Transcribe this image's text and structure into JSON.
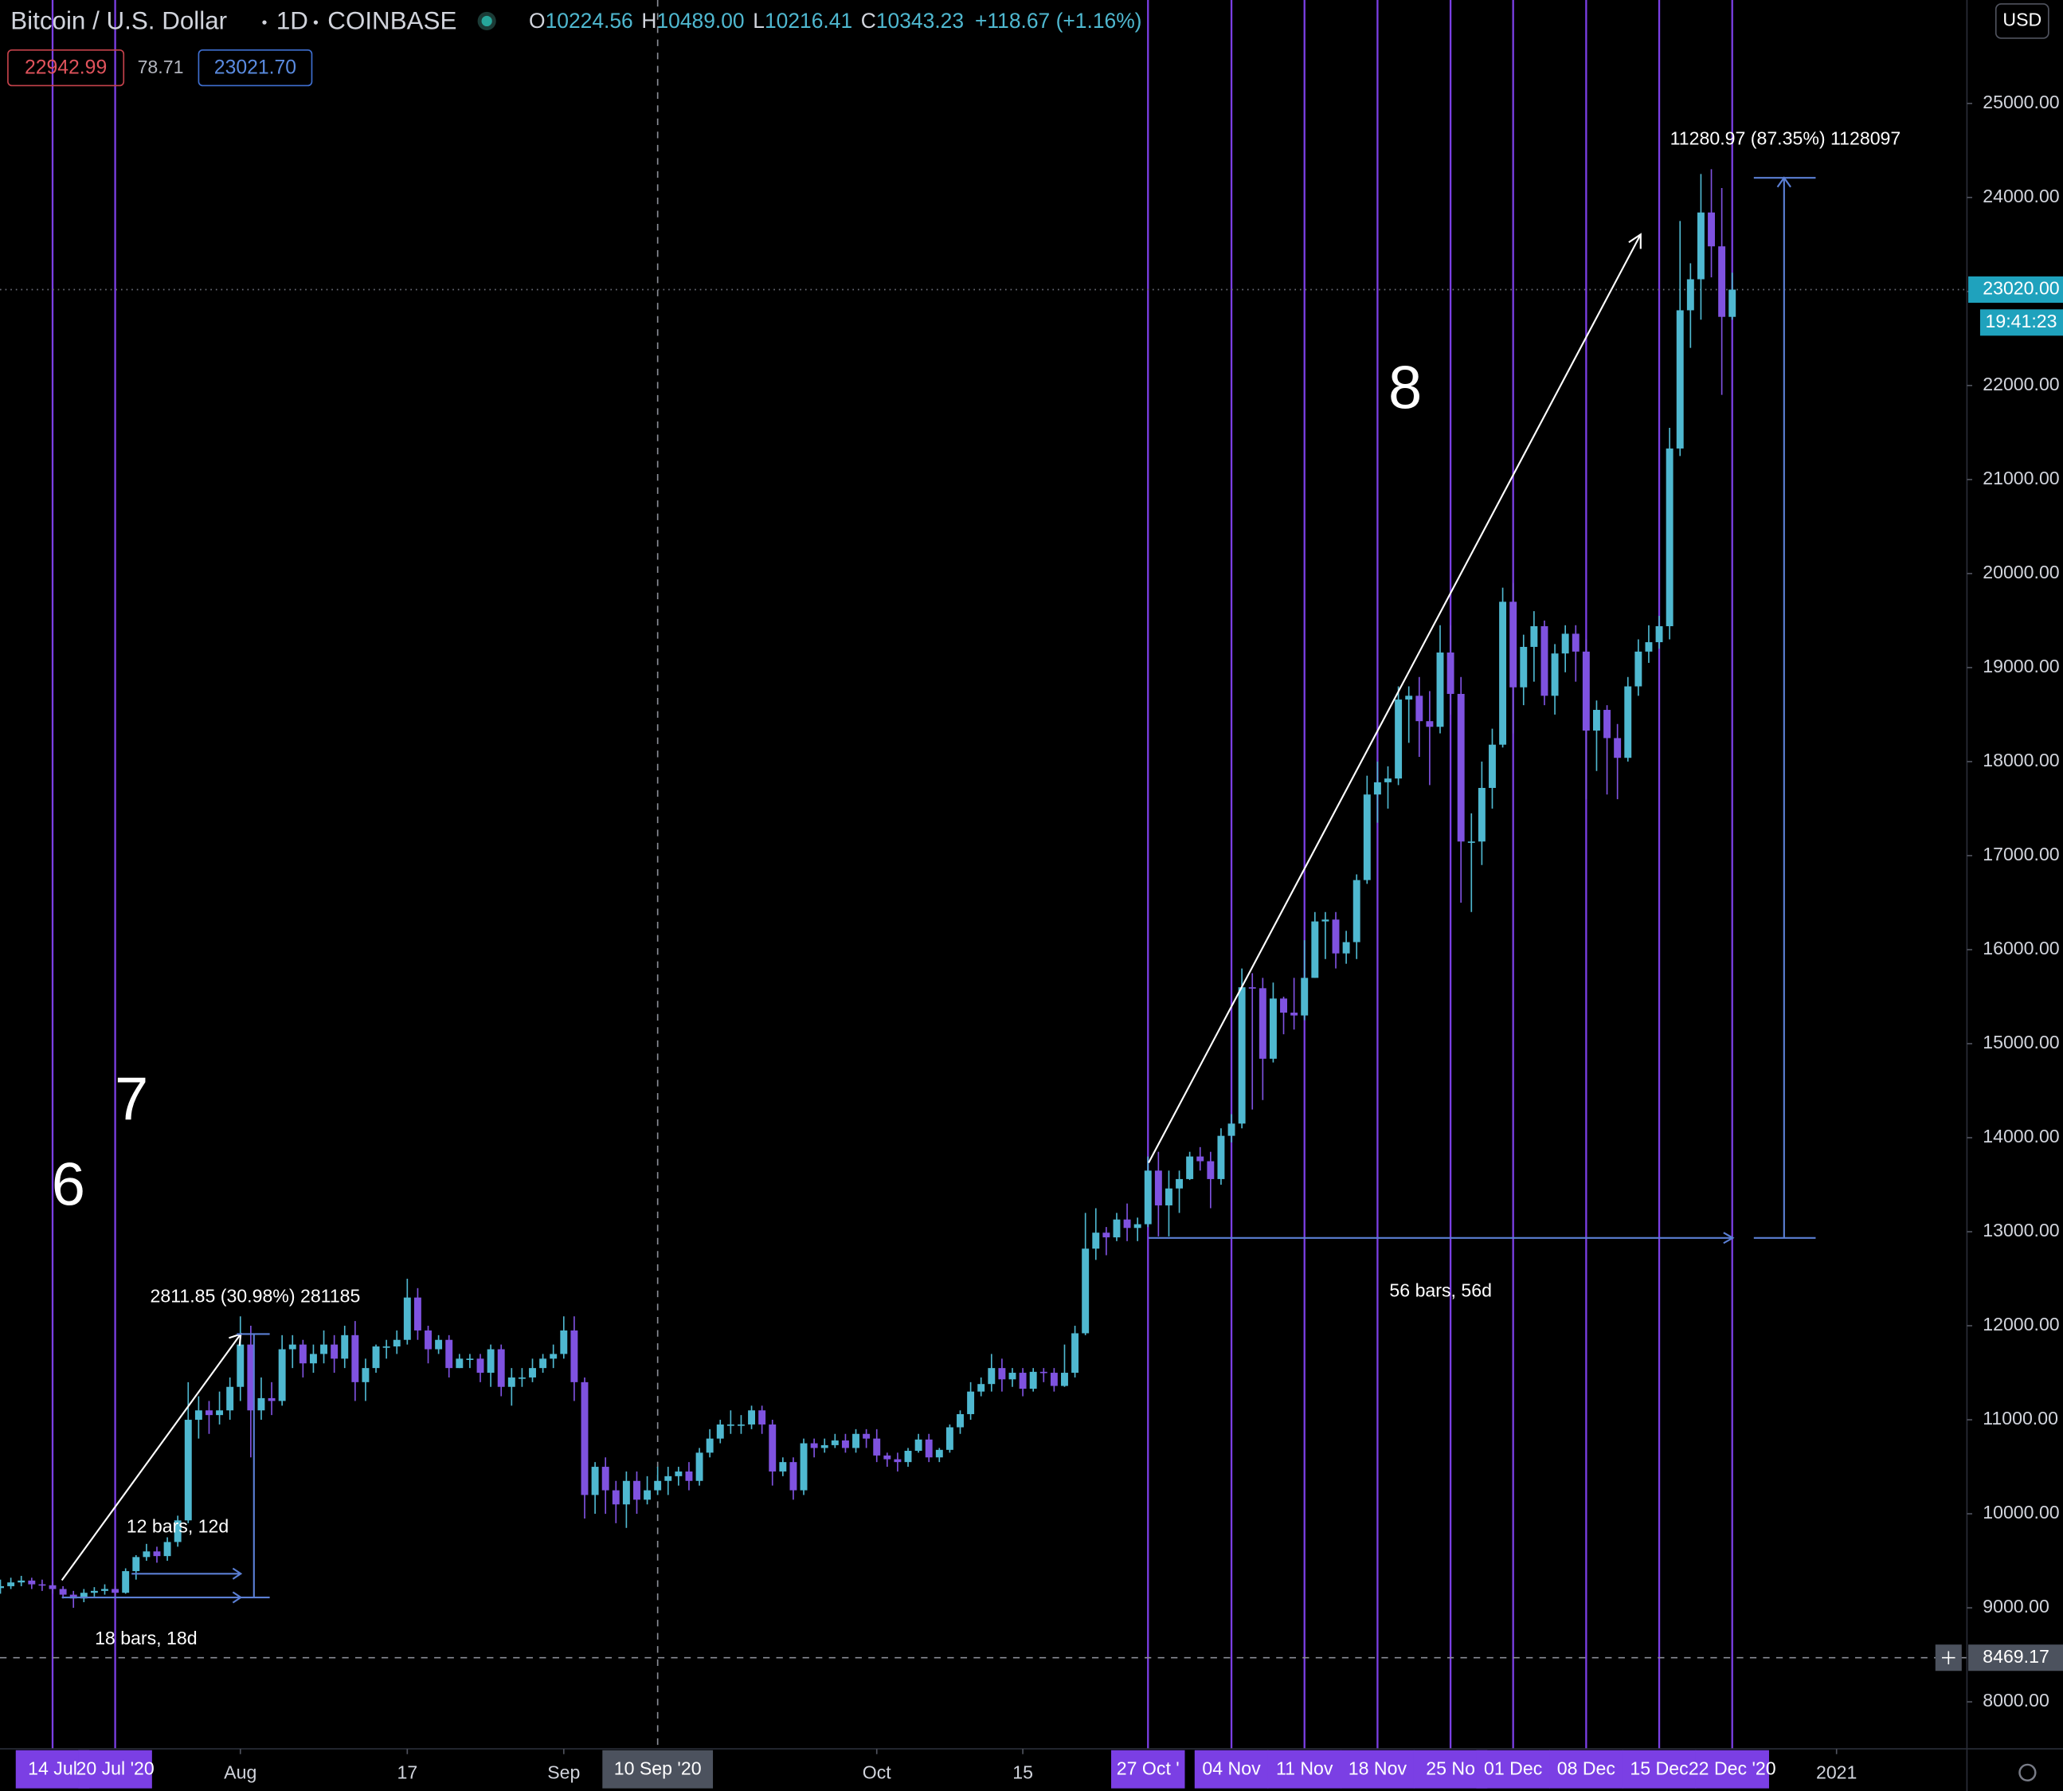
{
  "chart_data": {
    "type": "candlestick",
    "title": "Bitcoin / U.S. Dollar",
    "interval": "1D",
    "exchange": "COINBASE",
    "currency": "USD",
    "legend_ohlc": {
      "labels": [
        "O",
        "H",
        "L",
        "C"
      ],
      "values": [
        "10224.56",
        "10489.00",
        "10216.41",
        "10343.23"
      ],
      "change": "+118.67 (+1.16%)"
    },
    "indicators": [
      "22942.99",
      "78.71",
      "23021.70"
    ],
    "up_color": "#4fb8d0",
    "down_color": "#7f52e0",
    "open": [
      9210,
      9230,
      9270,
      9290,
      9250,
      9240,
      9200,
      9140,
      9100,
      9160,
      9180,
      9200,
      9160,
      9390,
      9540,
      9600,
      9550,
      9700,
      9930,
      11000,
      11100,
      11050,
      11100,
      11350,
      11800,
      11100,
      11230,
      11200,
      11750,
      11800,
      11600,
      11700,
      11800,
      11650,
      11900,
      11400,
      11550,
      11780,
      11780,
      11850,
      12300,
      11950,
      11750,
      11850,
      11550,
      11650,
      11650,
      11500,
      11750,
      11350,
      11450,
      11450,
      11550,
      11650,
      11700,
      11950,
      11400,
      10200,
      10500,
      10250,
      10100,
      10350,
      10150,
      10250,
      10350,
      10400,
      10450,
      10350,
      10650,
      10800,
      10950,
      10950,
      10950,
      11100,
      10950,
      10450,
      10550,
      10250,
      10750,
      10700,
      10730,
      10780,
      10700,
      10850,
      10800,
      10620,
      10580,
      10550,
      10670,
      10790,
      10600,
      10680,
      10920,
      11060,
      11300,
      11380,
      11550,
      11430,
      11500,
      11330,
      11510,
      11500,
      11360,
      11500,
      11920,
      12820,
      12990,
      12940,
      13130,
      13040,
      13080,
      13650,
      13280,
      13460,
      13560,
      13800,
      13750,
      13560,
      14020,
      14150,
      15600,
      15590,
      14840,
      15480,
      15330,
      15300,
      15700,
      16300,
      16320,
      15960,
      16080,
      16740,
      17650,
      17780,
      17820,
      18660,
      18700,
      18430,
      18370,
      19160,
      18720,
      17150,
      17150,
      17720,
      18180,
      19700,
      18790,
      19220,
      19440,
      18700,
      19150,
      19360,
      19170,
      18330,
      18550,
      18250,
      18040,
      18800,
      19170,
      19270,
      19440,
      21330,
      22800,
      23130,
      23840,
      23480,
      22730
    ],
    "high": [
      9300,
      9320,
      9340,
      9320,
      9300,
      9280,
      9230,
      9180,
      9200,
      9220,
      9250,
      9230,
      9420,
      9560,
      9680,
      9650,
      9750,
      9980,
      11400,
      11250,
      11200,
      11300,
      11450,
      12100,
      12000,
      11450,
      11400,
      11900,
      11900,
      11850,
      11800,
      11950,
      11900,
      12000,
      12050,
      11650,
      11800,
      11850,
      11950,
      12500,
      12400,
      12000,
      11900,
      11900,
      11700,
      11700,
      11700,
      11800,
      11800,
      11550,
      11550,
      11650,
      11700,
      11800,
      12100,
      12100,
      11450,
      10550,
      10600,
      10350,
      10450,
      10450,
      10400,
      10500,
      10500,
      10500,
      10550,
      10700,
      10900,
      11000,
      11100,
      11050,
      11150,
      11150,
      11000,
      10600,
      10600,
      10800,
      10800,
      10800,
      10850,
      10850,
      10900,
      10900,
      10900,
      10650,
      10650,
      10700,
      10850,
      10850,
      10700,
      10950,
      11100,
      11400,
      11450,
      11700,
      11650,
      11550,
      11550,
      11550,
      11550,
      11550,
      11800,
      12000,
      13200,
      13250,
      13050,
      13200,
      13300,
      13150,
      13800,
      13850,
      13650,
      13650,
      13850,
      13900,
      13850,
      14100,
      14250,
      15800,
      15750,
      15700,
      15650,
      15500,
      15700,
      16100,
      16400,
      16400,
      16400,
      16200,
      16800,
      17850,
      18000,
      17950,
      18800,
      18800,
      18900,
      18750,
      19450,
      19450,
      18900,
      17450,
      18000,
      18350,
      19850,
      19900,
      19350,
      19600,
      19500,
      19250,
      19450,
      19450,
      19300,
      18650,
      18600,
      18400,
      18900,
      19300,
      19450,
      19550,
      21550,
      23750,
      23300,
      24250,
      24300,
      24100,
      23200
    ],
    "low": [
      9150,
      9200,
      9230,
      9200,
      9180,
      9150,
      9100,
      9000,
      9060,
      9120,
      9140,
      9120,
      9150,
      9300,
      9500,
      9480,
      9500,
      9650,
      9900,
      10800,
      10850,
      10950,
      11000,
      11200,
      10600,
      11000,
      11050,
      11150,
      11550,
      11450,
      11500,
      11600,
      11500,
      11550,
      11200,
      11200,
      11500,
      11650,
      11700,
      11800,
      11850,
      11600,
      11700,
      11450,
      11550,
      11550,
      11400,
      11350,
      11250,
      11150,
      11350,
      11400,
      11500,
      11550,
      11650,
      11200,
      9950,
      10000,
      10000,
      9900,
      9850,
      10000,
      10100,
      10200,
      10200,
      10300,
      10250,
      10300,
      10600,
      10750,
      10850,
      10850,
      10900,
      10850,
      10300,
      10400,
      10150,
      10200,
      10600,
      10650,
      10700,
      10650,
      10650,
      10700,
      10550,
      10500,
      10450,
      10500,
      10650,
      10550,
      10550,
      10650,
      10850,
      11000,
      11250,
      11300,
      11300,
      11350,
      11250,
      11300,
      11400,
      11300,
      11350,
      11450,
      11900,
      12700,
      12750,
      12900,
      12900,
      12900,
      13050,
      12950,
      12950,
      13200,
      13550,
      13650,
      13250,
      13500,
      13950,
      14100,
      14300,
      14400,
      14800,
      15100,
      15150,
      15250,
      15700,
      15900,
      15800,
      15850,
      15900,
      16700,
      17350,
      17500,
      17750,
      18200,
      18050,
      17750,
      18300,
      18500,
      16500,
      16400,
      16900,
      17500,
      18150,
      18300,
      18600,
      18850,
      18600,
      18500,
      18950,
      18850,
      17600,
      17900,
      17650,
      17600,
      18000,
      18700,
      19050,
      19200,
      19300,
      21250,
      22400,
      22700,
      23150,
      21900,
      22700
    ],
    "close": [
      9230,
      9270,
      9290,
      9250,
      9240,
      9200,
      9140,
      9100,
      9160,
      9180,
      9200,
      9160,
      9390,
      9540,
      9600,
      9550,
      9700,
      9930,
      11000,
      11100,
      11050,
      11100,
      11350,
      11800,
      11100,
      11230,
      11200,
      11750,
      11800,
      11600,
      11700,
      11800,
      11650,
      11900,
      11400,
      11550,
      11780,
      11780,
      11850,
      12300,
      11950,
      11750,
      11850,
      11550,
      11650,
      11650,
      11500,
      11750,
      11350,
      11450,
      11450,
      11550,
      11650,
      11700,
      11950,
      11400,
      10200,
      10500,
      10250,
      10100,
      10350,
      10150,
      10250,
      10350,
      10400,
      10450,
      10350,
      10650,
      10800,
      10950,
      10950,
      10950,
      11100,
      10950,
      10450,
      10550,
      10250,
      10750,
      10700,
      10730,
      10780,
      10700,
      10850,
      10800,
      10620,
      10580,
      10550,
      10670,
      10790,
      10600,
      10680,
      10920,
      11060,
      11300,
      11380,
      11550,
      11430,
      11500,
      11330,
      11510,
      11500,
      11360,
      11500,
      11920,
      12820,
      12990,
      12940,
      13130,
      13040,
      13080,
      13650,
      13280,
      13460,
      13560,
      13800,
      13750,
      13560,
      14020,
      14150,
      15600,
      15590,
      14840,
      15480,
      15330,
      15300,
      15700,
      16300,
      16320,
      15960,
      16080,
      16740,
      17650,
      17780,
      17820,
      18660,
      18700,
      18430,
      18370,
      19160,
      18720,
      17150,
      17150,
      17720,
      18180,
      19700,
      18790,
      19220,
      19440,
      18700,
      19150,
      19360,
      19170,
      18330,
      18550,
      18250,
      18040,
      18800,
      19170,
      19270,
      19440,
      21330,
      22800,
      23130,
      23840,
      23480,
      22730,
      23020
    ],
    "xlim": [
      -0.04,
      188.5
    ],
    "xticks": [
      {
        "value": 23,
        "label": "Aug"
      },
      {
        "value": 39,
        "label": "17"
      },
      {
        "value": 54,
        "label": "Sep"
      },
      {
        "value": 84,
        "label": "Oct"
      },
      {
        "value": 98,
        "label": "15"
      },
      {
        "value": 176,
        "label": "2021"
      }
    ],
    "ylim": [
      7500,
      26100
    ],
    "yticks": [
      {
        "value": 8000,
        "label": "8000.00"
      },
      {
        "value": 9000,
        "label": "9000.00"
      },
      {
        "value": 10000,
        "label": "10000.00"
      },
      {
        "value": 11000,
        "label": "11000.00"
      },
      {
        "value": 12000,
        "label": "12000.00"
      },
      {
        "value": 13000,
        "label": "13000.00"
      },
      {
        "value": 14000,
        "label": "14000.00"
      },
      {
        "value": 15000,
        "label": "15000.00"
      },
      {
        "value": 16000,
        "label": "16000.00"
      },
      {
        "value": 17000,
        "label": "17000.00"
      },
      {
        "value": 18000,
        "label": "18000.00"
      },
      {
        "value": 19000,
        "label": "19000.00"
      },
      {
        "value": 20000,
        "label": "20000.00"
      },
      {
        "value": 21000,
        "label": "21000.00"
      },
      {
        "value": 22000,
        "label": "22000.00"
      },
      {
        "value": 23000,
        "label": "23000.00"
      },
      {
        "value": 24000,
        "label": "24000.00"
      },
      {
        "value": 25000,
        "label": "25000.00"
      }
    ],
    "grid": false,
    "last_price": {
      "value": 23020,
      "label": "23020.00",
      "countdown": "19:41:23"
    },
    "crosshair": {
      "x": 63,
      "x_label": "10 Sep '20",
      "price": 8469.17
    },
    "markers": {
      "x": [
        5,
        11,
        110,
        118,
        125,
        132,
        139,
        145,
        152,
        159,
        166
      ],
      "labels": [
        "14 Jul",
        "20 Jul '20",
        "27 Oct '",
        "04 Nov",
        "11 Nov",
        "18 Nov",
        "25 No",
        "01 Dec",
        "08 Dec",
        "15 Dec",
        "22 Dec '20"
      ],
      "color": "#7b3fe4"
    },
    "annotations": {
      "numbers": [
        "6",
        "7",
        "8"
      ],
      "measures": [
        "2811.85 (30.98%) 281185",
        "12 bars, 12d",
        "18 bars, 18d",
        "56 bars, 56d",
        "11280.97 (87.35%) 1128097"
      ]
    }
  }
}
